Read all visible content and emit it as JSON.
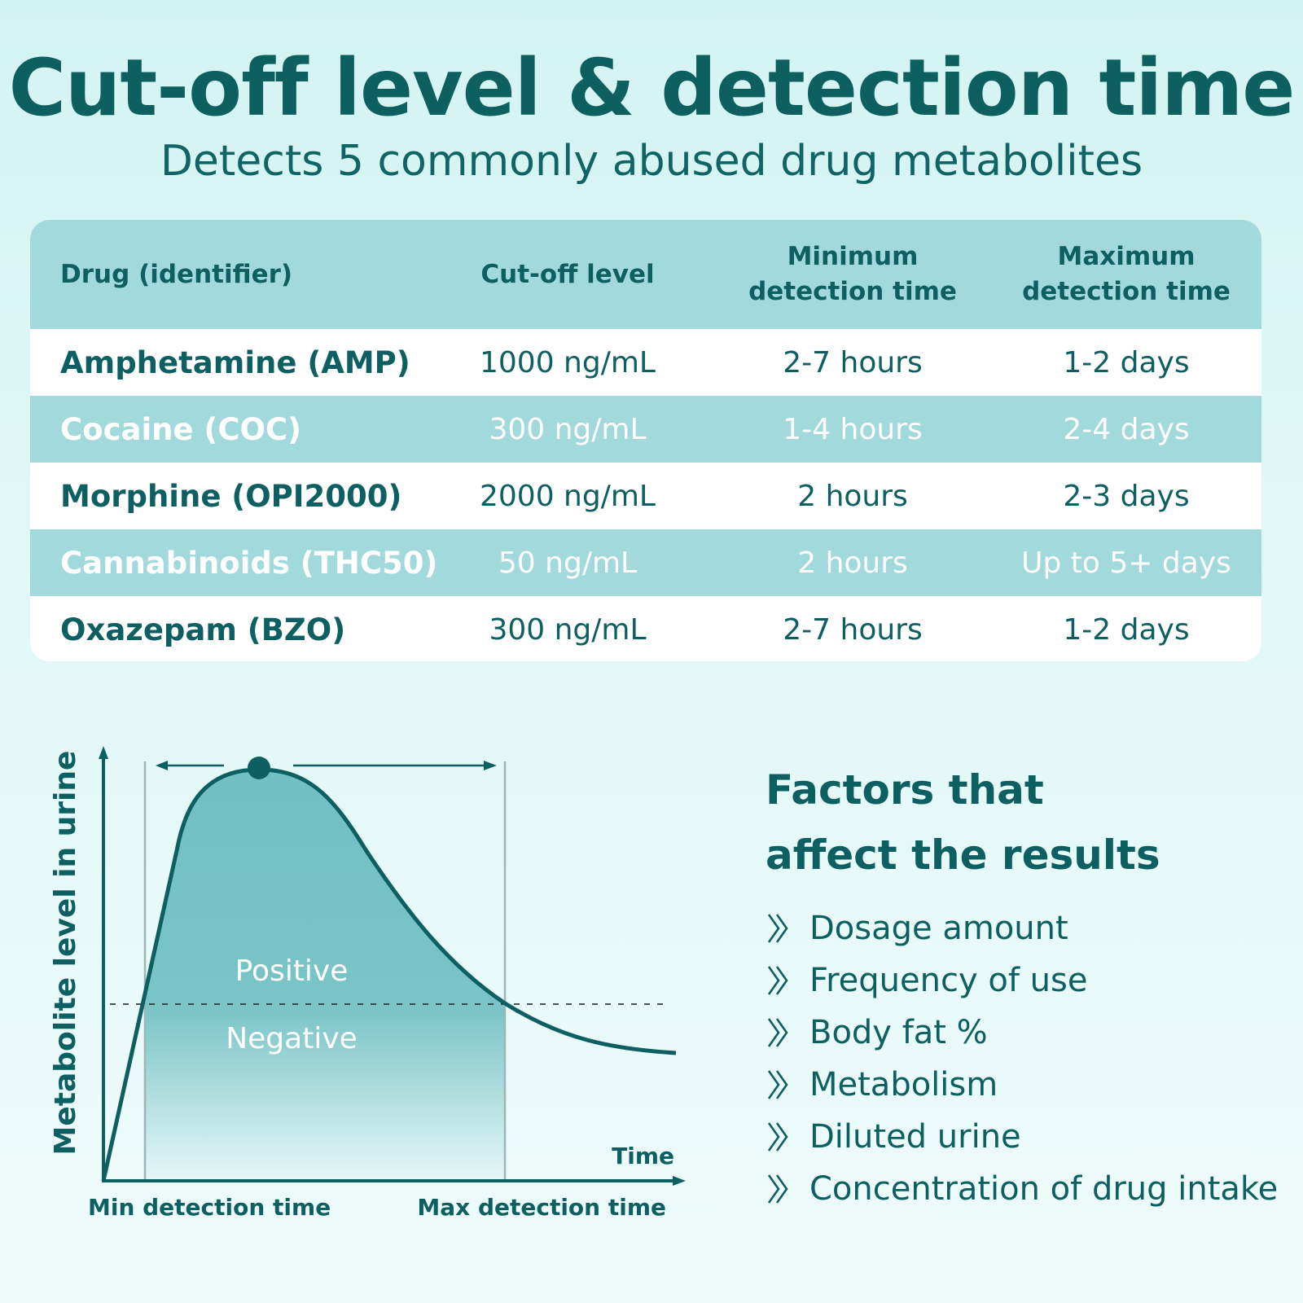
{
  "title": "Cut-off level & detection time",
  "subtitle": "Detects 5 commonly abused drug metabolites",
  "table": {
    "headers": {
      "drug": "Drug (identifier)",
      "cutoff": "Cut-off level",
      "min_line1": "Minimum",
      "min_line2": "detection time",
      "max_line1": "Maximum",
      "max_line2": "detection time"
    },
    "rows": [
      {
        "drug": "Amphetamine (AMP)",
        "cutoff": "1000 ng/mL",
        "min": "2-7 hours",
        "max": "1-2 days"
      },
      {
        "drug": "Cocaine (COC)",
        "cutoff": "300 ng/mL",
        "min": "1-4 hours",
        "max": "2-4 days"
      },
      {
        "drug": "Morphine (OPI2000)",
        "cutoff": "2000 ng/mL",
        "min": "2 hours",
        "max": "2-3 days"
      },
      {
        "drug": "Cannabinoids (THC50)",
        "cutoff": "50 ng/mL",
        "min": "2 hours",
        "max": "Up to 5+ days"
      },
      {
        "drug": "Oxazepam (BZO)",
        "cutoff": "300 ng/mL",
        "min": "2-7 hours",
        "max": "1-2 days"
      }
    ]
  },
  "diagram": {
    "y_axis_label": "Metabolite level in urine",
    "x_axis_label": "Time",
    "positive_label": "Positive",
    "negative_label": "Negative",
    "min_label": "Min detection time",
    "max_label": "Max detection time"
  },
  "factors": {
    "title_line1": "Factors that",
    "title_line2": "affect the results",
    "items": [
      "Dosage amount",
      "Frequency of use",
      "Body fat %",
      "Metabolism",
      "Diluted urine",
      "Concentration of drug intake"
    ]
  },
  "colors": {
    "primary": "#0d5f61",
    "table_header": "#a2d9dc",
    "curve_fill": "#72c0c4"
  }
}
